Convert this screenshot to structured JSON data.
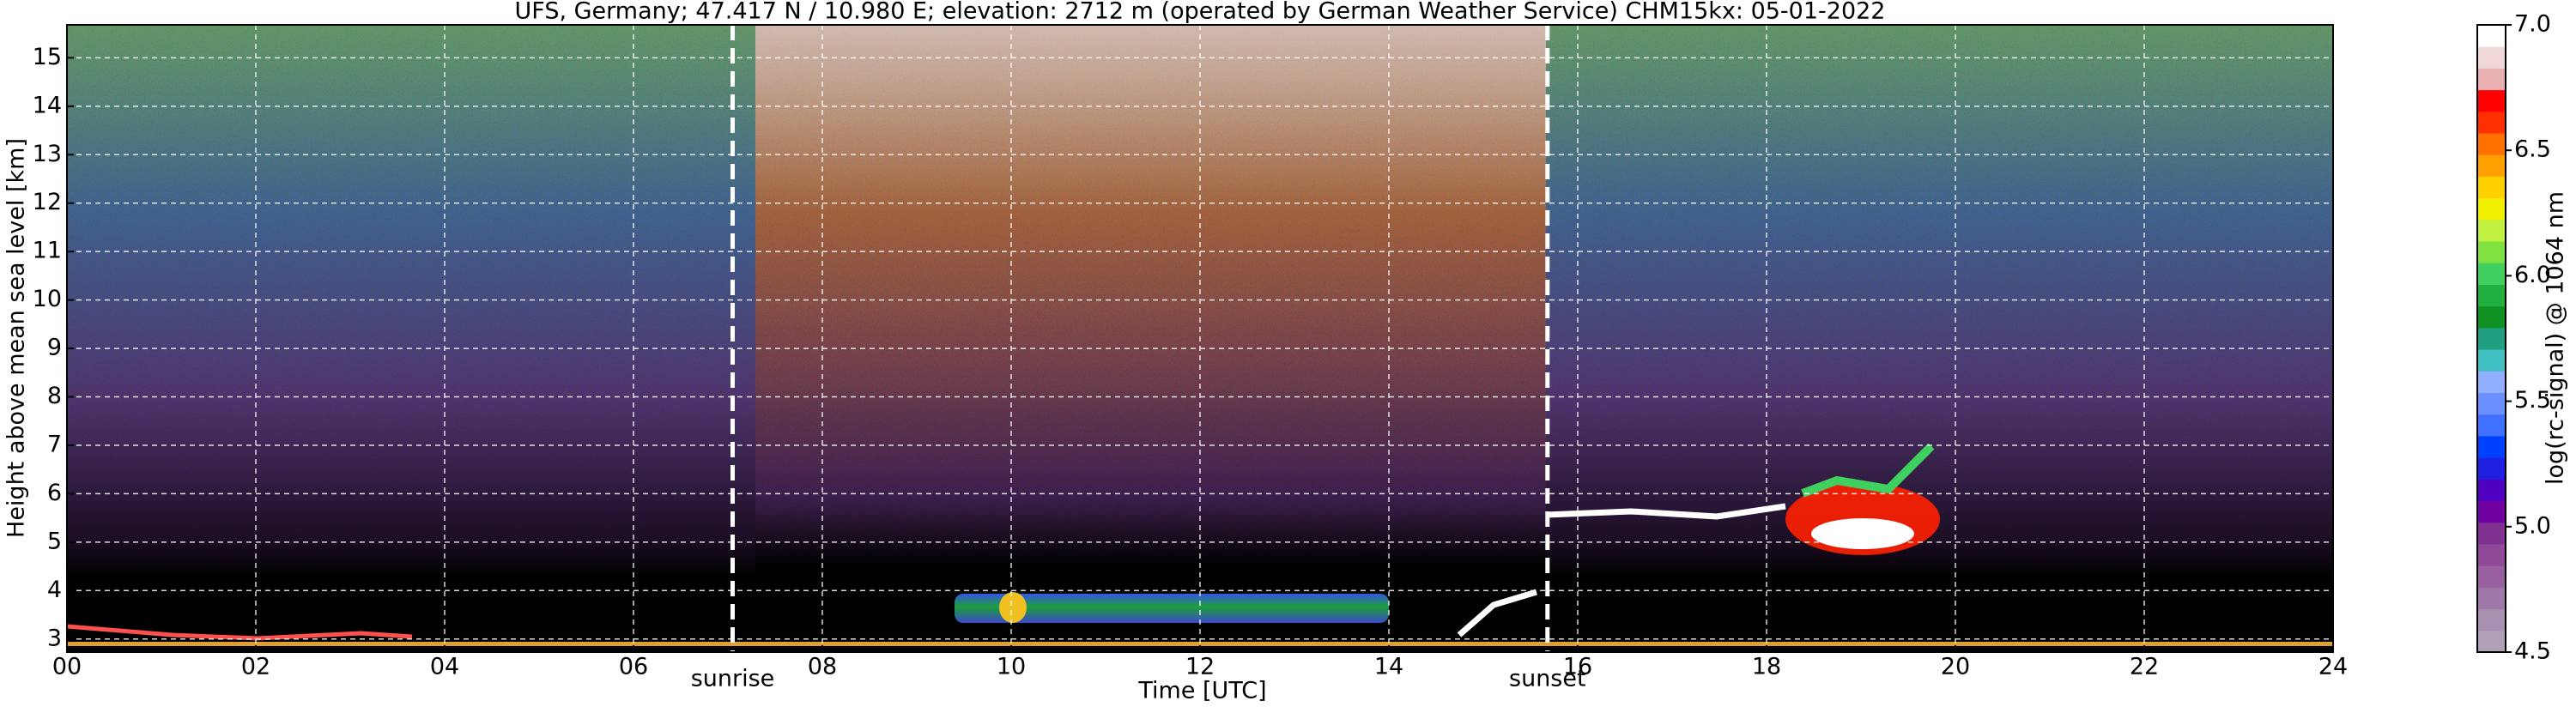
{
  "chart_data": {
    "type": "heatmap",
    "title": "UFS, Germany; 47.417 N / 10.980 E; elevation: 2712 m  (operated by German Weather Service)    CHM15kx: 05-01-2022",
    "x_label": "Time [UTC]",
    "y_label": "Height above mean sea level [km]",
    "xlim": [
      0,
      24
    ],
    "xticks": [
      {
        "value": 0,
        "label": "00"
      },
      {
        "value": 2,
        "label": "02"
      },
      {
        "value": 4,
        "label": "04"
      },
      {
        "value": 6,
        "label": "06"
      },
      {
        "value": 8,
        "label": "08"
      },
      {
        "value": 10,
        "label": "10"
      },
      {
        "value": 12,
        "label": "12"
      },
      {
        "value": 14,
        "label": "14"
      },
      {
        "value": 16,
        "label": "16"
      },
      {
        "value": 18,
        "label": "18"
      },
      {
        "value": 20,
        "label": "20"
      },
      {
        "value": 22,
        "label": "22"
      },
      {
        "value": 24,
        "label": "24"
      }
    ],
    "ylim": [
      2.73,
      15.68
    ],
    "yticks": [
      3,
      4,
      5,
      6,
      7,
      8,
      9,
      10,
      11,
      12,
      13,
      14,
      15
    ],
    "grid": true,
    "annotations": [
      {
        "label": "sunrise",
        "x": 7.05
      },
      {
        "label": "sunset",
        "x": 15.68
      }
    ],
    "colorbar": {
      "label": "log(rc-signal) @ 1064 nm",
      "lim": [
        4.5,
        7.0
      ],
      "ticks": [
        4.5,
        {
          "value": 5.0,
          "label": "5.0"
        },
        5.5,
        {
          "value": 6.0,
          "label": "6.0"
        },
        6.5,
        {
          "value": 7.0,
          "label": "7.0"
        }
      ],
      "colors": [
        "#b0a0b8",
        "#a890b0",
        "#a078a8",
        "#9860a0",
        "#904898",
        "#803090",
        "#7000a0",
        "#5000c0",
        "#2020e0",
        "#0040ff",
        "#4070ff",
        "#6a90ff",
        "#90b0ff",
        "#40c0c0",
        "#20a080",
        "#109020",
        "#20b040",
        "#40d060",
        "#80e040",
        "#c0f040",
        "#f0f000",
        "#ffd000",
        "#ffa000",
        "#ff7000",
        "#ff3000",
        "#ff0000",
        "#e8b0b0",
        "#f0d8d8",
        "#ffffff"
      ]
    }
  }
}
